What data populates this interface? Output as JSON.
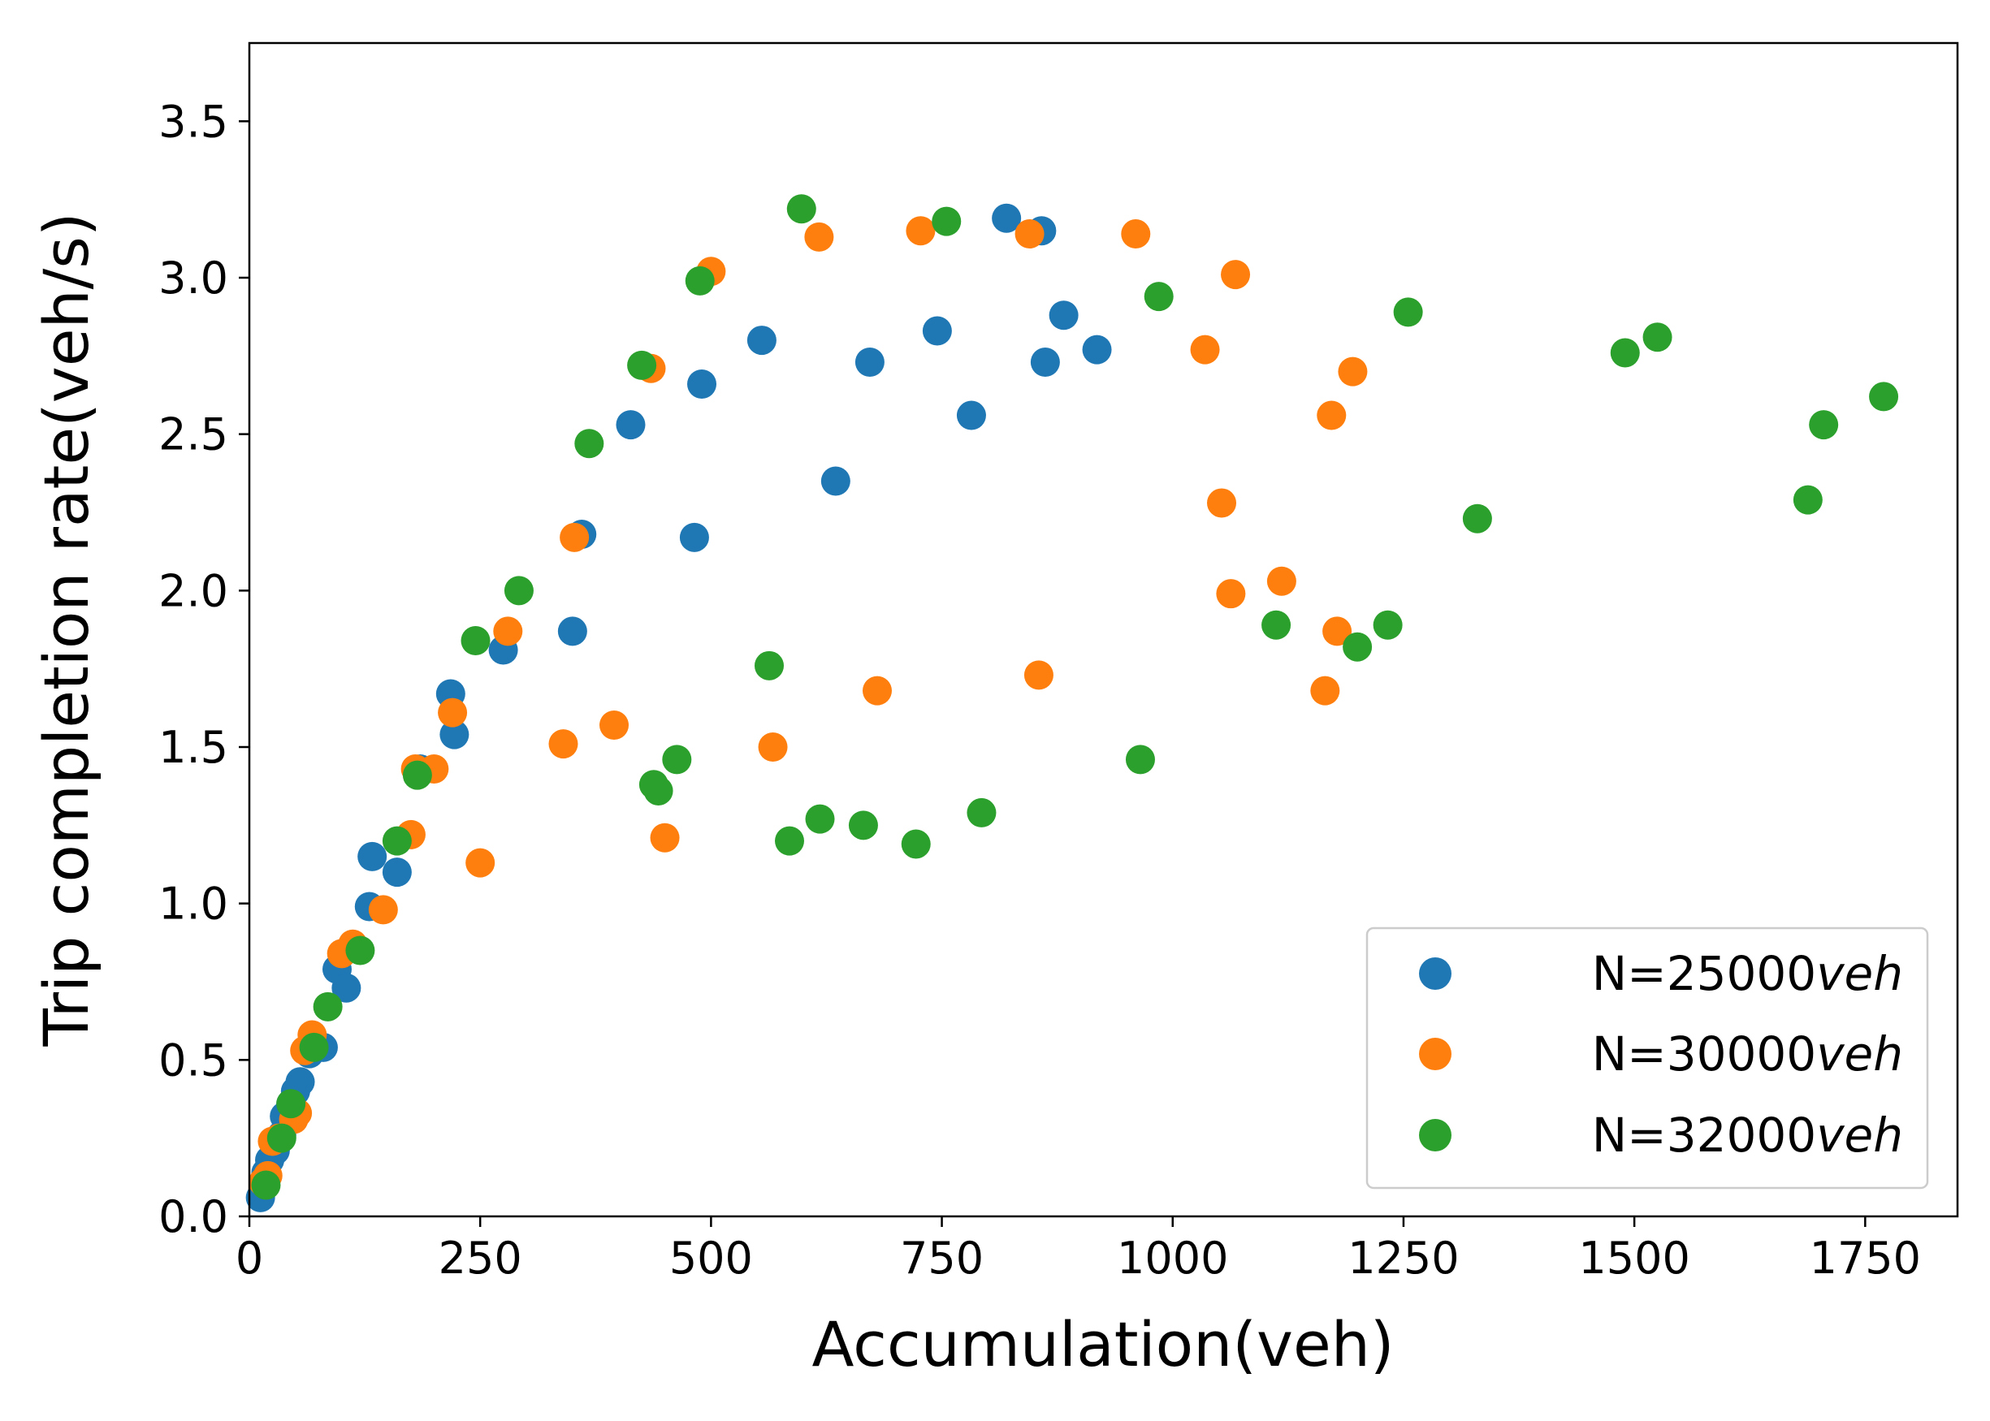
{
  "chart_data": {
    "type": "scatter",
    "title": "",
    "xlabel": "Accumulation(veh)",
    "ylabel": "Trip completion rate(veh/s)",
    "xlim": [
      0,
      1850
    ],
    "ylim": [
      0,
      3.75
    ],
    "xticks": [
      0,
      250,
      500,
      750,
      1000,
      1250,
      1500,
      1750
    ],
    "yticks": [
      0.0,
      0.5,
      1.0,
      1.5,
      2.0,
      2.5,
      3.0,
      3.5
    ],
    "xtick_labels": [
      "0",
      "250",
      "500",
      "750",
      "1000",
      "1250",
      "1500",
      "1750"
    ],
    "ytick_labels": [
      "0.0",
      "0.5",
      "1.0",
      "1.5",
      "2.0",
      "2.5",
      "3.0",
      "3.5"
    ],
    "grid": false,
    "legend_position": "bottom-right",
    "series": [
      {
        "name": "N=25000",
        "unit": "veh",
        "color": "#1f77b4",
        "points": [
          [
            12,
            0.06
          ],
          [
            18,
            0.14
          ],
          [
            22,
            0.18
          ],
          [
            28,
            0.21
          ],
          [
            35,
            0.26
          ],
          [
            38,
            0.32
          ],
          [
            45,
            0.36
          ],
          [
            50,
            0.4
          ],
          [
            55,
            0.43
          ],
          [
            65,
            0.52
          ],
          [
            80,
            0.54
          ],
          [
            95,
            0.79
          ],
          [
            105,
            0.73
          ],
          [
            130,
            0.99
          ],
          [
            133,
            1.15
          ],
          [
            160,
            1.1
          ],
          [
            185,
            1.43
          ],
          [
            218,
            1.67
          ],
          [
            222,
            1.54
          ],
          [
            275,
            1.81
          ],
          [
            350,
            1.87
          ],
          [
            360,
            2.18
          ],
          [
            413,
            2.53
          ],
          [
            482,
            2.17
          ],
          [
            490,
            2.66
          ],
          [
            555,
            2.8
          ],
          [
            635,
            2.35
          ],
          [
            672,
            2.73
          ],
          [
            745,
            2.83
          ],
          [
            782,
            2.56
          ],
          [
            820,
            3.19
          ],
          [
            858,
            3.15
          ],
          [
            862,
            2.73
          ],
          [
            882,
            2.88
          ],
          [
            918,
            2.77
          ]
        ]
      },
      {
        "name": "N=30000",
        "unit": "veh",
        "color": "#ff7f0e",
        "points": [
          [
            15,
            0.11
          ],
          [
            20,
            0.13
          ],
          [
            25,
            0.24
          ],
          [
            32,
            0.25
          ],
          [
            48,
            0.31
          ],
          [
            52,
            0.33
          ],
          [
            60,
            0.53
          ],
          [
            68,
            0.58
          ],
          [
            100,
            0.84
          ],
          [
            112,
            0.87
          ],
          [
            145,
            0.98
          ],
          [
            175,
            1.22
          ],
          [
            180,
            1.43
          ],
          [
            200,
            1.43
          ],
          [
            220,
            1.61
          ],
          [
            250,
            1.13
          ],
          [
            280,
            1.87
          ],
          [
            340,
            1.51
          ],
          [
            352,
            2.17
          ],
          [
            395,
            1.57
          ],
          [
            435,
            2.71
          ],
          [
            450,
            1.21
          ],
          [
            500,
            3.02
          ],
          [
            567,
            1.5
          ],
          [
            617,
            3.13
          ],
          [
            680,
            1.68
          ],
          [
            727,
            3.15
          ],
          [
            845,
            3.14
          ],
          [
            855,
            1.73
          ],
          [
            960,
            3.14
          ],
          [
            1035,
            2.77
          ],
          [
            1053,
            2.28
          ],
          [
            1063,
            1.99
          ],
          [
            1068,
            3.01
          ],
          [
            1118,
            2.03
          ],
          [
            1165,
            1.68
          ],
          [
            1172,
            2.56
          ],
          [
            1178,
            1.87
          ],
          [
            1195,
            2.7
          ]
        ]
      },
      {
        "name": "N=32000",
        "unit": "veh",
        "color": "#2ca02c",
        "points": [
          [
            18,
            0.1
          ],
          [
            35,
            0.25
          ],
          [
            45,
            0.36
          ],
          [
            70,
            0.54
          ],
          [
            85,
            0.67
          ],
          [
            120,
            0.85
          ],
          [
            160,
            1.2
          ],
          [
            182,
            1.41
          ],
          [
            245,
            1.84
          ],
          [
            292,
            2.0
          ],
          [
            368,
            2.47
          ],
          [
            425,
            2.72
          ],
          [
            438,
            1.38
          ],
          [
            443,
            1.36
          ],
          [
            463,
            1.46
          ],
          [
            488,
            2.99
          ],
          [
            563,
            1.76
          ],
          [
            585,
            1.2
          ],
          [
            598,
            3.22
          ],
          [
            618,
            1.27
          ],
          [
            665,
            1.25
          ],
          [
            722,
            1.19
          ],
          [
            755,
            3.18
          ],
          [
            793,
            1.29
          ],
          [
            965,
            1.46
          ],
          [
            985,
            2.94
          ],
          [
            1112,
            1.89
          ],
          [
            1200,
            1.82
          ],
          [
            1233,
            1.89
          ],
          [
            1255,
            2.89
          ],
          [
            1330,
            2.23
          ],
          [
            1490,
            2.76
          ],
          [
            1525,
            2.81
          ],
          [
            1688,
            2.29
          ],
          [
            1705,
            2.53
          ],
          [
            1770,
            2.62
          ]
        ]
      }
    ]
  }
}
